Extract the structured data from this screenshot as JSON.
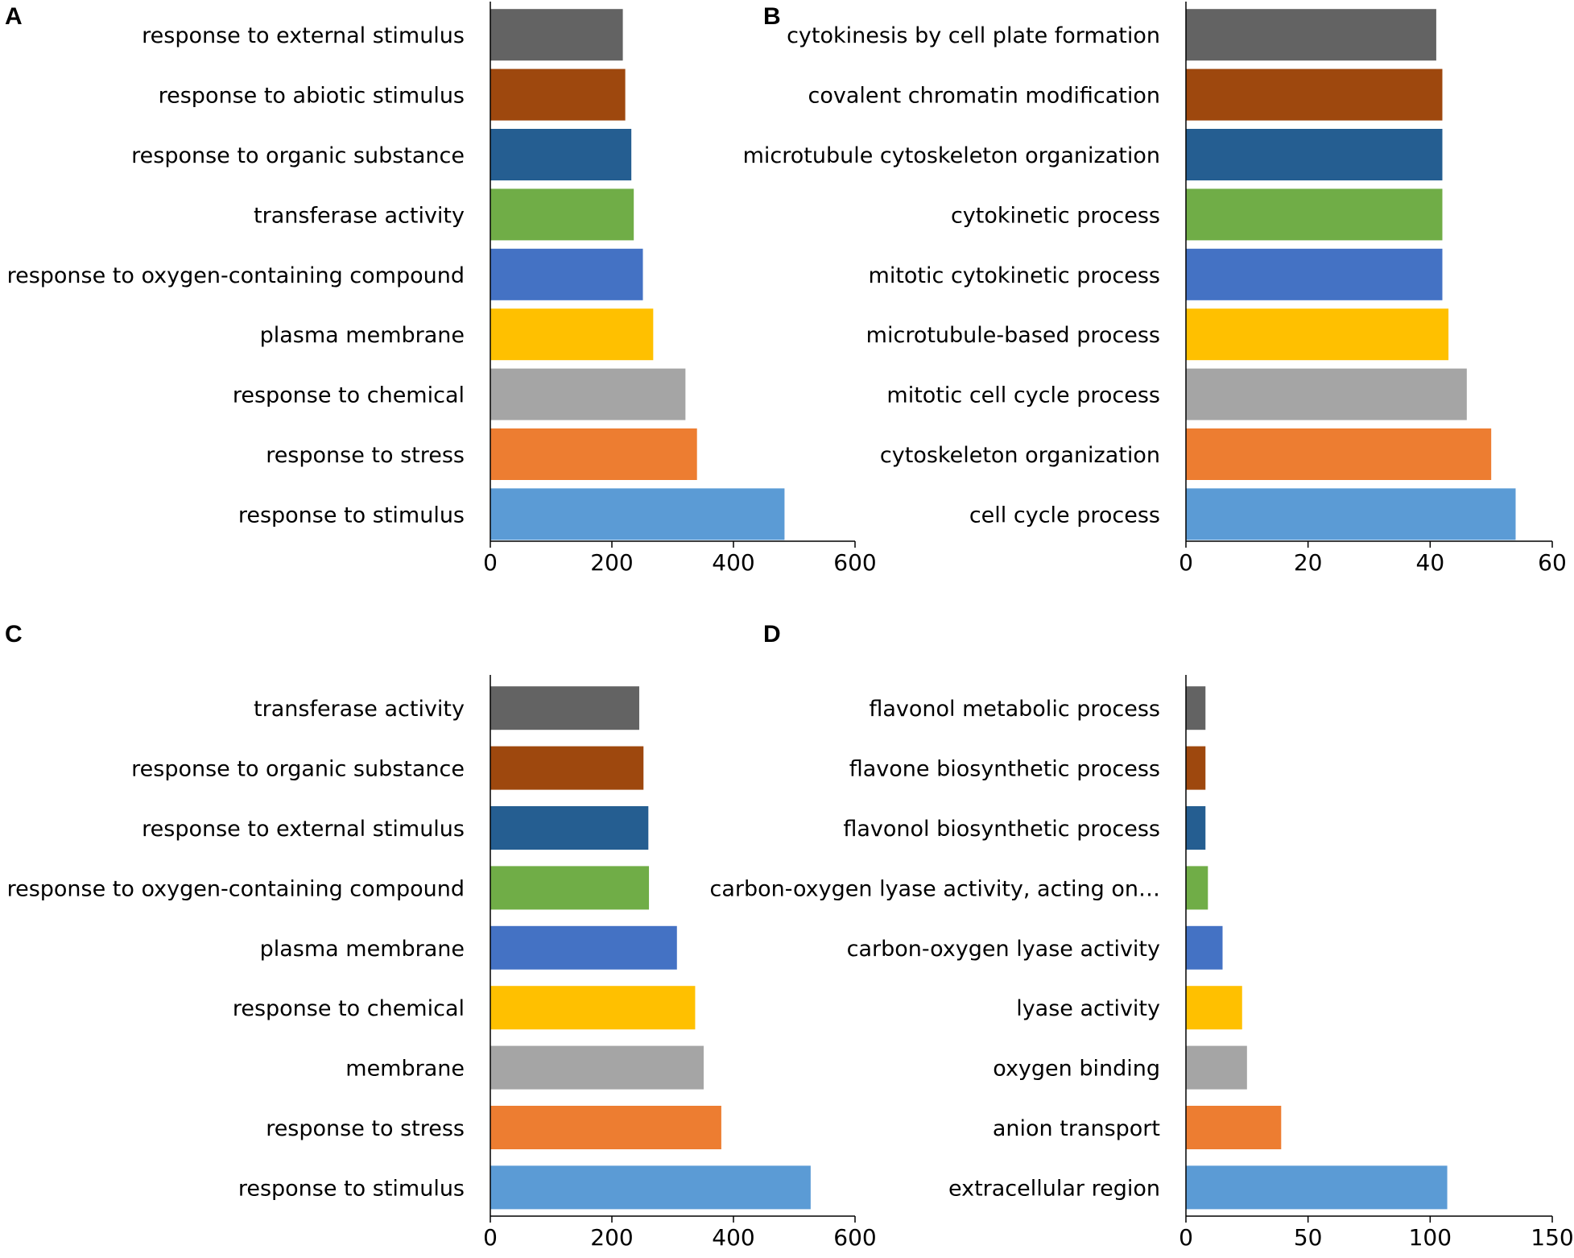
{
  "figure": {
    "description": "GO enrichment bar charts, panels A-D"
  },
  "colors": [
    "#5b9bd5",
    "#ed7d31",
    "#a5a5a5",
    "#ffc000",
    "#4472c4",
    "#70ad47",
    "#255e91",
    "#9e480e",
    "#636363"
  ],
  "chart_data": [
    {
      "panel": "A",
      "type": "bar",
      "orientation": "horizontal",
      "categories": [
        "response to stimulus",
        "response to stress",
        "response to chemical",
        "plasma membrane",
        "response to oxygen-containing compound",
        "transferase activity",
        "response to organic substance",
        "response to abiotic stimulus",
        "response to external stimulus"
      ],
      "values": [
        484,
        340,
        321,
        268,
        251,
        236,
        232,
        222,
        218
      ],
      "xlim": [
        0,
        600
      ],
      "xticks": [
        0,
        200,
        400,
        600
      ],
      "xtick_labels": [
        "0",
        "200",
        "400",
        "600"
      ],
      "title": "",
      "xlabel": "",
      "ylabel": ""
    },
    {
      "panel": "B",
      "type": "bar",
      "orientation": "horizontal",
      "categories": [
        "cell cycle process",
        "cytoskeleton organization",
        "mitotic cell cycle process",
        "microtubule-based process",
        "mitotic cytokinetic process",
        "cytokinetic process",
        "microtubule cytoskeleton organization",
        "covalent chromatin modification",
        "cytokinesis by cell plate formation"
      ],
      "values": [
        54,
        50,
        46,
        43,
        42,
        42,
        42,
        42,
        41
      ],
      "xlim": [
        0,
        60
      ],
      "xticks": [
        0,
        20,
        40,
        60
      ],
      "xtick_labels": [
        "0",
        "20",
        "40",
        "60"
      ],
      "title": "",
      "xlabel": "",
      "ylabel": ""
    },
    {
      "panel": "C",
      "type": "bar",
      "orientation": "horizontal",
      "categories": [
        "response to stimulus",
        "response to stress",
        "membrane",
        "response to chemical",
        "plasma membrane",
        "response to oxygen-containing compound",
        "response to external stimulus",
        "response to organic substance",
        "transferase activity"
      ],
      "values": [
        527,
        380,
        351,
        337,
        307,
        261,
        260,
        252,
        245
      ],
      "xlim": [
        0,
        600
      ],
      "xticks": [
        0,
        200,
        400,
        600
      ],
      "xtick_labels": [
        "0",
        "200",
        "400",
        "600"
      ],
      "title": "",
      "xlabel": "",
      "ylabel": ""
    },
    {
      "panel": "D",
      "type": "bar",
      "orientation": "horizontal",
      "categories": [
        "extracellular region",
        "anion transport",
        "oxygen binding",
        "lyase activity",
        "carbon-oxygen lyase activity",
        "carbon-oxygen lyase activity, acting on…",
        "flavonol biosynthetic process",
        "flavone biosynthetic process",
        "flavonol metabolic process"
      ],
      "values": [
        107,
        39,
        25,
        23,
        15,
        9,
        8,
        8,
        8
      ],
      "xlim": [
        0,
        150
      ],
      "xticks": [
        0,
        50,
        100,
        150
      ],
      "xtick_labels": [
        "0",
        "50",
        "100",
        "150"
      ],
      "title": "",
      "xlabel": "",
      "ylabel": ""
    }
  ]
}
